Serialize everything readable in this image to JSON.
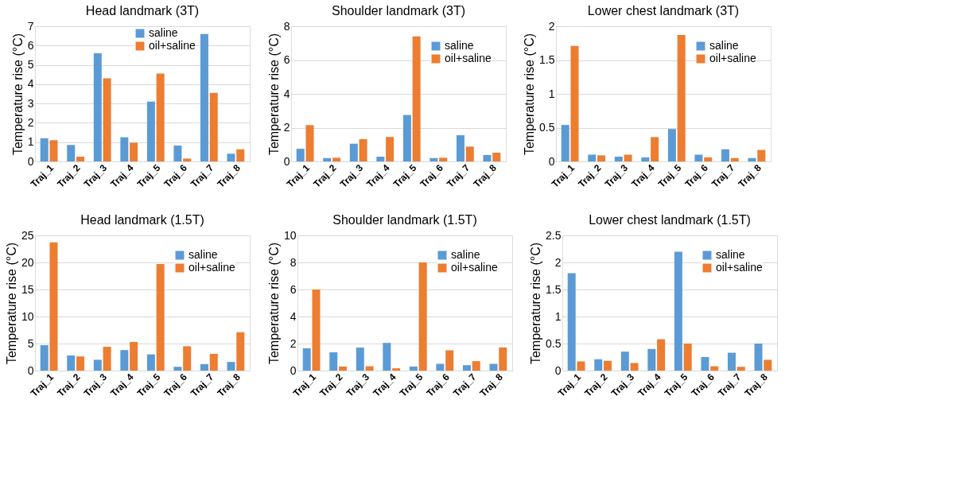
{
  "chart_data": [
    {
      "type": "bar",
      "title": "Head landmark (3T)",
      "ylabel": "Temperature rise (°C)",
      "categories": [
        "Traj_1",
        "Traj_2",
        "Traj_3",
        "Traj_4",
        "Traj_5",
        "Traj_6",
        "Traj_7",
        "Traj_8"
      ],
      "ylim": [
        0,
        7
      ],
      "yticks": [
        0,
        1,
        2,
        3,
        4,
        5,
        6,
        7
      ],
      "grid": "y",
      "legend": "top",
      "series": [
        {
          "name": "saline",
          "color": "#5b9bd5",
          "values": [
            1.2,
            0.85,
            5.6,
            1.25,
            3.1,
            0.82,
            6.6,
            0.4
          ]
        },
        {
          "name": "oil+saline",
          "color": "#ed7d31",
          "values": [
            1.1,
            0.25,
            4.3,
            0.97,
            4.55,
            0.15,
            3.55,
            0.63
          ]
        }
      ]
    },
    {
      "type": "bar",
      "title": "Shoulder landmark (3T)",
      "ylabel": "Temperature rise (°C)",
      "categories": [
        "Traj_1",
        "Traj_2",
        "Traj_3",
        "Traj_4",
        "Traj_5",
        "Traj_6",
        "Traj_7",
        "Traj_8"
      ],
      "ylim": [
        0,
        8
      ],
      "yticks": [
        0,
        2,
        4,
        6,
        8
      ],
      "grid": "y",
      "legend": "top right",
      "series": [
        {
          "name": "saline",
          "color": "#5b9bd5",
          "values": [
            0.75,
            0.2,
            1.05,
            0.28,
            2.75,
            0.2,
            1.55,
            0.38
          ]
        },
        {
          "name": "oil+saline",
          "color": "#ed7d31",
          "values": [
            2.15,
            0.22,
            1.32,
            1.45,
            7.4,
            0.22,
            0.88,
            0.52
          ]
        }
      ]
    },
    {
      "type": "bar",
      "title": "Lower chest landmark (3T)",
      "ylabel": "Temperature rise (°C)",
      "categories": [
        "Traj_1",
        "Traj_2",
        "Traj_3",
        "Traj_4",
        "Traj_5",
        "Traj_6",
        "Traj_7",
        "Traj_8"
      ],
      "ylim": [
        0,
        2
      ],
      "yticks": [
        0,
        0.5,
        1,
        1.5,
        2
      ],
      "grid": "y",
      "legend": "top right",
      "series": [
        {
          "name": "saline",
          "color": "#5b9bd5",
          "values": [
            0.54,
            0.1,
            0.07,
            0.06,
            0.48,
            0.1,
            0.18,
            0.05
          ]
        },
        {
          "name": "oil+saline",
          "color": "#ed7d31",
          "values": [
            1.71,
            0.09,
            0.1,
            0.36,
            1.87,
            0.06,
            0.05,
            0.17
          ]
        }
      ]
    },
    {
      "type": "bar",
      "title": "Head landmark (1.5T)",
      "ylabel": "Temperature rise (°C)",
      "categories": [
        "Traj_1",
        "Traj_2",
        "Traj_3",
        "Traj_4",
        "Traj_5",
        "Traj_6",
        "Traj_7",
        "Traj_8"
      ],
      "ylim": [
        0,
        25
      ],
      "yticks": [
        0,
        5,
        10,
        15,
        20,
        25
      ],
      "grid": "y",
      "legend": "top right",
      "series": [
        {
          "name": "saline",
          "color": "#5b9bd5",
          "values": [
            4.7,
            2.8,
            2.0,
            3.8,
            3.0,
            0.7,
            1.2,
            1.6
          ]
        },
        {
          "name": "oil+saline",
          "color": "#ed7d31",
          "values": [
            23.7,
            2.6,
            4.4,
            5.3,
            19.7,
            4.5,
            3.1,
            7.1
          ]
        }
      ]
    },
    {
      "type": "bar",
      "title": "Shoulder landmark (1.5T)",
      "ylabel": "Temperature rise (°C)",
      "categories": [
        "Traj_1",
        "Traj_2",
        "Traj_3",
        "Traj_4",
        "Traj_5",
        "Traj_6",
        "Traj_7",
        "Traj_8"
      ],
      "ylim": [
        0,
        10
      ],
      "yticks": [
        0,
        2,
        4,
        6,
        8,
        10
      ],
      "grid": "y",
      "legend": "top right",
      "series": [
        {
          "name": "saline",
          "color": "#5b9bd5",
          "values": [
            1.65,
            1.35,
            1.7,
            2.05,
            0.3,
            0.5,
            0.4,
            0.5
          ]
        },
        {
          "name": "oil+saline",
          "color": "#ed7d31",
          "values": [
            6.0,
            0.3,
            0.32,
            0.17,
            8.0,
            1.5,
            0.7,
            1.7
          ]
        }
      ]
    },
    {
      "type": "bar",
      "title": "Lower chest landmark (1.5T)",
      "ylabel": "Temperature rise (°C)",
      "categories": [
        "Traj_1",
        "Traj_2",
        "Traj_3",
        "Traj_4",
        "Traj_5",
        "Traj_6",
        "Traj_7",
        "Traj_8"
      ],
      "ylim": [
        0,
        2.5
      ],
      "yticks": [
        0,
        0.5,
        1,
        1.5,
        2,
        2.5
      ],
      "grid": "y",
      "legend": "top right",
      "series": [
        {
          "name": "saline",
          "color": "#5b9bd5",
          "values": [
            1.8,
            0.21,
            0.35,
            0.4,
            2.2,
            0.25,
            0.33,
            0.5
          ]
        },
        {
          "name": "oil+saline",
          "color": "#ed7d31",
          "values": [
            0.17,
            0.18,
            0.14,
            0.58,
            0.5,
            0.08,
            0.07,
            0.2
          ]
        }
      ]
    }
  ]
}
